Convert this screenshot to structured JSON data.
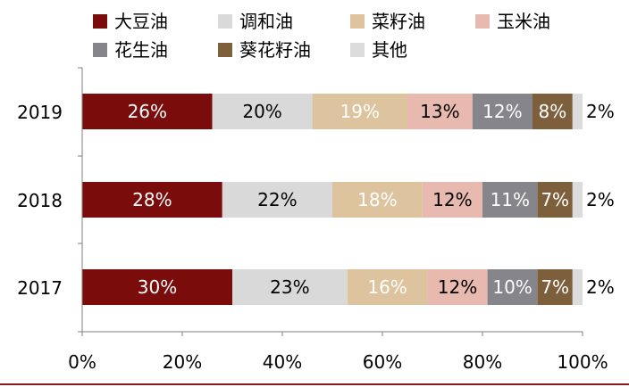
{
  "chart_data": {
    "type": "bar",
    "orientation": "horizontal",
    "stacked": true,
    "categories": [
      "2019",
      "2018",
      "2017"
    ],
    "series": [
      {
        "name": "大豆油",
        "color": "#7B0C0C",
        "label_color": "#ffffff",
        "values": [
          26,
          28,
          30
        ],
        "labels": [
          "26%",
          "28%",
          "30%"
        ]
      },
      {
        "name": "调和油",
        "color": "#D9D9D9",
        "label_color": "#000000",
        "values": [
          20,
          22,
          23
        ],
        "labels": [
          "20%",
          "22%",
          "23%"
        ]
      },
      {
        "name": "菜籽油",
        "color": "#DEC49E",
        "label_color": "#ffffff",
        "values": [
          19,
          18,
          16
        ],
        "labels": [
          "19%",
          "18%",
          "16%"
        ]
      },
      {
        "name": "玉米油",
        "color": "#E8B9AF",
        "label_color": "#000000",
        "values": [
          13,
          12,
          12
        ],
        "labels": [
          "13%",
          "12%",
          "12%"
        ]
      },
      {
        "name": "花生油",
        "color": "#87858C",
        "label_color": "#ffffff",
        "values": [
          12,
          11,
          10
        ],
        "labels": [
          "12%",
          "11%",
          "10%"
        ]
      },
      {
        "name": "葵花籽油",
        "color": "#7E5F3C",
        "label_color": "#ffffff",
        "values": [
          8,
          7,
          7
        ],
        "labels": [
          "8%",
          "7%",
          "7%"
        ]
      },
      {
        "name": "其他",
        "color": "#DCDCDC",
        "label_color": "#000000",
        "values": [
          2,
          2,
          2
        ],
        "labels": [
          "2%",
          "2%",
          "2%"
        ]
      }
    ],
    "xlim": [
      0,
      100
    ],
    "xticks": [
      "0%",
      "20%",
      "40%",
      "60%",
      "80%",
      "100%"
    ],
    "legend_placement": "top",
    "grid": false,
    "title": "",
    "xlabel": "",
    "ylabel": ""
  }
}
